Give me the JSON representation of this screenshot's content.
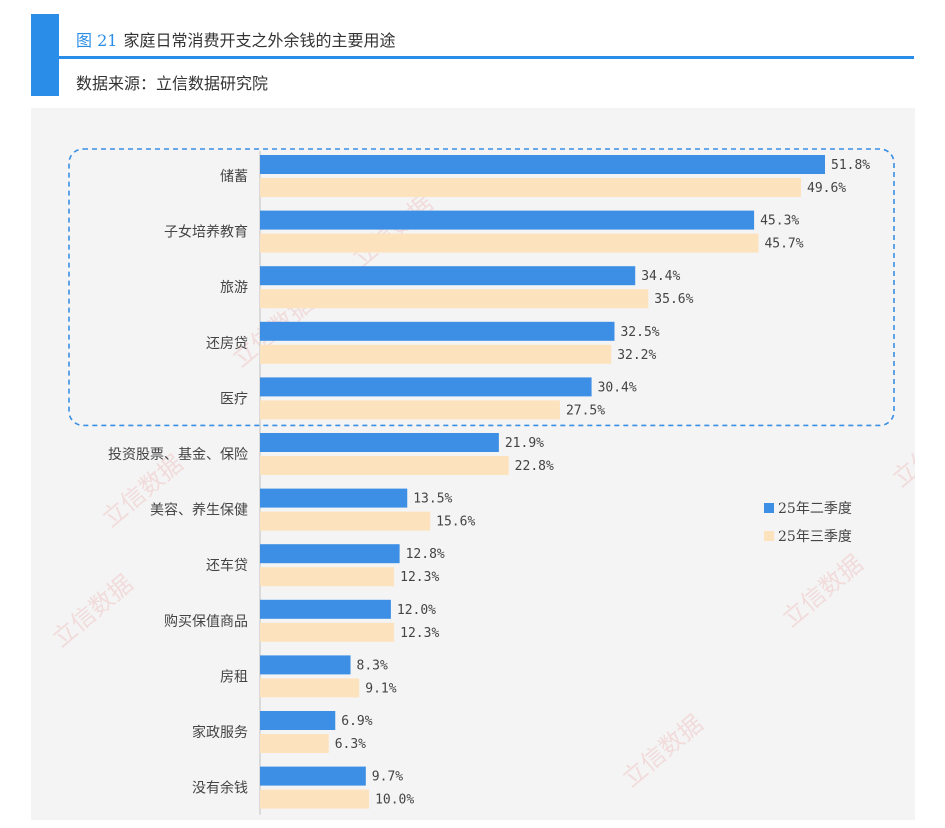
{
  "header": {
    "figure_number": "图 21",
    "title": "家庭日常消费开支之外余钱的主要用途",
    "source": "数据来源：立信数据研究院"
  },
  "watermark_text": "立信数据",
  "colors": {
    "accent": "#2a8de8",
    "series_q2": "#3d8fe6",
    "series_q3": "#fde3bd",
    "highlight_border": "#3a8fe3"
  },
  "chart_data": {
    "type": "bar",
    "orientation": "horizontal",
    "categories": [
      "储蓄",
      "子女培养教育",
      "旅游",
      "还房贷",
      "医疗",
      "投资股票、基金、保险",
      "美容、养生保健",
      "还车贷",
      "购买保值商品",
      "房租",
      "家政服务",
      "没有余钱"
    ],
    "series": [
      {
        "name": "25年二季度",
        "values": [
          51.8,
          45.3,
          34.4,
          32.5,
          30.4,
          21.9,
          13.5,
          12.8,
          12.0,
          8.3,
          6.9,
          9.7
        ],
        "labels": [
          "51.8%",
          "45.3%",
          "34.4%",
          "32.5%",
          "30.4%",
          "21.9%",
          "13.5%",
          "12.8%",
          "12.0%",
          "8.3%",
          "6.9%",
          "9.7%"
        ]
      },
      {
        "name": "25年三季度",
        "values": [
          49.6,
          45.7,
          35.6,
          32.2,
          27.5,
          22.8,
          15.6,
          12.3,
          12.3,
          9.1,
          6.3,
          10.0
        ],
        "labels": [
          "49.6%",
          "45.7%",
          "35.6%",
          "32.2%",
          "27.5%",
          "22.8%",
          "15.6%",
          "12.3%",
          "12.3%",
          "9.1%",
          "6.3%",
          "10.0%"
        ]
      }
    ],
    "xlim": [
      0,
      60
    ],
    "legend_position": "right",
    "highlighted_categories": [
      "储蓄",
      "子女培养教育",
      "旅游",
      "还房贷",
      "医疗"
    ],
    "grid": false
  }
}
